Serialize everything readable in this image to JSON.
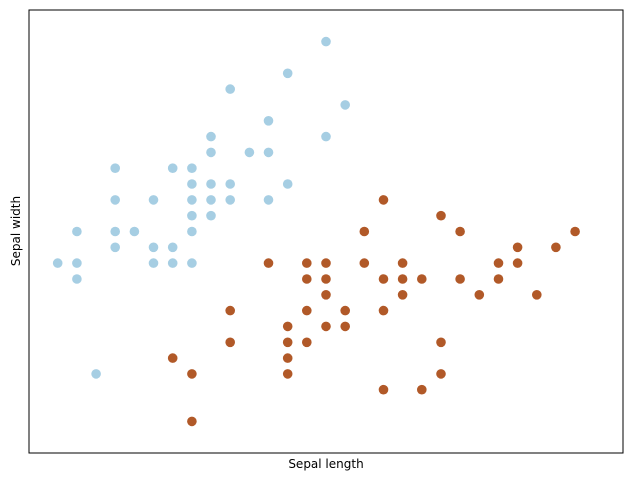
{
  "colors": {
    "class_0": "#a6cee3",
    "class_1": "#b15928",
    "axes": "#000000",
    "background": "#ffffff"
  },
  "chart_data": {
    "type": "scatter",
    "title": "",
    "xlabel": "Sepal length",
    "ylabel": "Sepal width",
    "xlim": [
      4.15,
      7.25
    ],
    "ylim": [
      1.8,
      4.6
    ],
    "x_ticks_visible": false,
    "y_ticks_visible": false,
    "grid": false,
    "legend": "none",
    "series": [
      {
        "color_key": "class_0",
        "points": [
          [
            4.3,
            3.0
          ],
          [
            4.4,
            2.9
          ],
          [
            4.4,
            3.0
          ],
          [
            4.4,
            3.2
          ],
          [
            4.5,
            2.3
          ],
          [
            4.6,
            3.1
          ],
          [
            4.6,
            3.2
          ],
          [
            4.6,
            3.4
          ],
          [
            4.6,
            3.6
          ],
          [
            4.7,
            3.2
          ],
          [
            4.8,
            3.0
          ],
          [
            4.8,
            3.1
          ],
          [
            4.8,
            3.4
          ],
          [
            4.9,
            3.0
          ],
          [
            4.9,
            3.1
          ],
          [
            4.9,
            3.6
          ],
          [
            5.0,
            3.0
          ],
          [
            5.0,
            3.2
          ],
          [
            5.0,
            3.3
          ],
          [
            5.0,
            3.4
          ],
          [
            5.0,
            3.5
          ],
          [
            5.0,
            3.6
          ],
          [
            5.1,
            3.3
          ],
          [
            5.1,
            3.4
          ],
          [
            5.1,
            3.5
          ],
          [
            5.1,
            3.7
          ],
          [
            5.1,
            3.8
          ],
          [
            5.2,
            3.4
          ],
          [
            5.2,
            3.5
          ],
          [
            5.2,
            4.1
          ],
          [
            5.3,
            3.7
          ],
          [
            5.4,
            3.4
          ],
          [
            5.4,
            3.7
          ],
          [
            5.4,
            3.9
          ],
          [
            5.5,
            3.5
          ],
          [
            5.5,
            4.2
          ],
          [
            5.7,
            3.8
          ],
          [
            5.7,
            4.4
          ],
          [
            5.8,
            4.0
          ]
        ]
      },
      {
        "color_key": "class_1",
        "points": [
          [
            4.9,
            2.4
          ],
          [
            5.0,
            2.0
          ],
          [
            5.0,
            2.3
          ],
          [
            5.2,
            2.7
          ],
          [
            5.2,
            2.5
          ],
          [
            5.4,
            3.0
          ],
          [
            5.5,
            2.6
          ],
          [
            5.5,
            2.5
          ],
          [
            5.5,
            2.4
          ],
          [
            5.5,
            2.3
          ],
          [
            5.6,
            3.0
          ],
          [
            5.6,
            2.9
          ],
          [
            5.6,
            2.7
          ],
          [
            5.6,
            2.5
          ],
          [
            5.7,
            3.0
          ],
          [
            5.7,
            2.9
          ],
          [
            5.7,
            2.8
          ],
          [
            5.7,
            2.6
          ],
          [
            5.8,
            2.7
          ],
          [
            5.8,
            2.6
          ],
          [
            5.9,
            3.2
          ],
          [
            5.9,
            3.0
          ],
          [
            6.0,
            3.4
          ],
          [
            6.0,
            2.9
          ],
          [
            6.0,
            2.7
          ],
          [
            6.0,
            2.2
          ],
          [
            6.1,
            3.0
          ],
          [
            6.1,
            2.9
          ],
          [
            6.1,
            2.8
          ],
          [
            6.2,
            2.9
          ],
          [
            6.2,
            2.2
          ],
          [
            6.3,
            3.3
          ],
          [
            6.3,
            2.5
          ],
          [
            6.3,
            2.3
          ],
          [
            6.4,
            3.2
          ],
          [
            6.4,
            2.9
          ],
          [
            6.5,
            2.8
          ],
          [
            6.6,
            3.0
          ],
          [
            6.6,
            2.9
          ],
          [
            6.7,
            3.1
          ],
          [
            6.7,
            3.0
          ],
          [
            6.8,
            2.8
          ],
          [
            6.9,
            3.1
          ],
          [
            7.0,
            3.2
          ]
        ]
      }
    ]
  }
}
